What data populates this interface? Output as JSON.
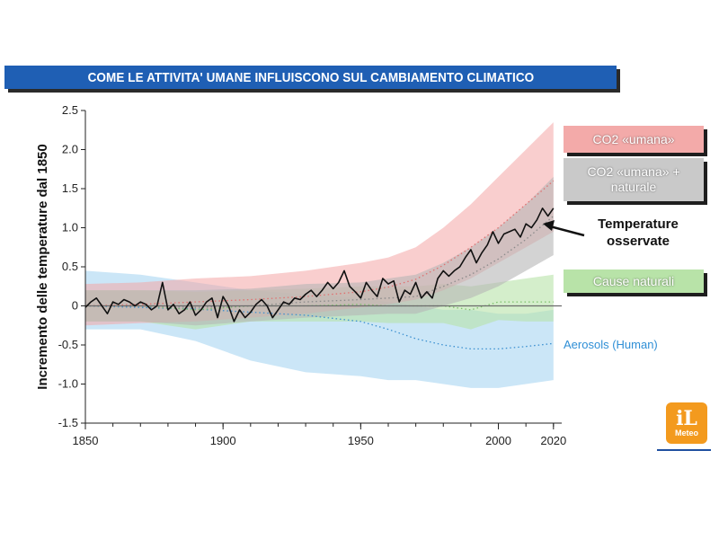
{
  "header": {
    "title": "COME LE ATTIVITA' UMANE INFLUISCONO SUL CAMBIAMENTO CLIMATICO"
  },
  "logo": {
    "main": "iL",
    "sub": "Meteo",
    "color": "#f39a1e"
  },
  "chart_data": {
    "type": "line",
    "title": "COME LE ATTIVITA' UMANE INFLUISCONO SUL CAMBIAMENTO CLIMATICO",
    "ylabel": "Incremento delle temperature dal 1850",
    "xlabel": "",
    "xlim": [
      1850,
      2023
    ],
    "ylim": [
      -1.5,
      2.5
    ],
    "x_ticks": [
      "1850",
      "1900",
      "1950",
      "2000",
      "2020"
    ],
    "x_tick_values": [
      1850,
      1900,
      1950,
      2000,
      2020
    ],
    "y_ticks": [
      "2.5",
      "2.0",
      "1.5",
      "1.0",
      "0.5",
      "0",
      "-0.5",
      "-1.0",
      "-1.5"
    ],
    "y_tick_values": [
      2.5,
      2.0,
      1.5,
      1.0,
      0.5,
      0,
      -0.5,
      -1.0,
      -1.5
    ],
    "grid": false,
    "zero_line": true,
    "legend_placement": "right",
    "series": [
      {
        "name": "CO2 «umana»",
        "color": "#f4a6a6",
        "style": "band-dotted",
        "x": [
          1850,
          1870,
          1890,
          1910,
          1930,
          1950,
          1960,
          1970,
          1980,
          1990,
          2000,
          2010,
          2020
        ],
        "values": [
          0.0,
          0.02,
          0.05,
          0.08,
          0.12,
          0.18,
          0.24,
          0.34,
          0.52,
          0.75,
          1.0,
          1.3,
          1.6
        ],
        "upper": [
          0.28,
          0.3,
          0.35,
          0.38,
          0.45,
          0.55,
          0.62,
          0.75,
          1.0,
          1.3,
          1.65,
          2.0,
          2.35
        ],
        "lower": [
          -0.25,
          -0.22,
          -0.2,
          -0.15,
          -0.1,
          -0.02,
          0.02,
          0.08,
          0.2,
          0.35,
          0.55,
          0.75,
          0.95
        ]
      },
      {
        "name": "CO2 «umana» + naturale",
        "color": "#b5b5b5",
        "style": "band-dotted",
        "x": [
          1850,
          1870,
          1890,
          1910,
          1930,
          1950,
          1960,
          1970,
          1980,
          1990,
          2000,
          2010,
          2020
        ],
        "values": [
          0.0,
          0.0,
          -0.02,
          0.0,
          0.05,
          0.08,
          0.1,
          0.12,
          0.25,
          0.4,
          0.6,
          0.85,
          1.15
        ],
        "upper": [
          0.2,
          0.2,
          0.2,
          0.22,
          0.28,
          0.3,
          0.35,
          0.4,
          0.55,
          0.75,
          1.0,
          1.3,
          1.65
        ],
        "lower": [
          -0.2,
          -0.2,
          -0.25,
          -0.2,
          -0.15,
          -0.12,
          -0.1,
          -0.1,
          0.0,
          0.1,
          0.25,
          0.45,
          0.65
        ]
      },
      {
        "name": "Cause naturali",
        "color": "#b8e3a8",
        "style": "band-dotted",
        "x": [
          1850,
          1870,
          1890,
          1910,
          1930,
          1950,
          1960,
          1970,
          1980,
          1990,
          2000,
          2010,
          2020
        ],
        "values": [
          0.0,
          0.0,
          -0.05,
          0.0,
          0.0,
          0.02,
          0.0,
          0.0,
          0.0,
          -0.05,
          0.05,
          0.05,
          0.05
        ],
        "upper": [
          0.2,
          0.2,
          0.18,
          0.2,
          0.22,
          0.25,
          0.25,
          0.25,
          0.28,
          0.25,
          0.3,
          0.35,
          0.4
        ],
        "lower": [
          -0.2,
          -0.2,
          -0.3,
          -0.2,
          -0.2,
          -0.2,
          -0.22,
          -0.22,
          -0.22,
          -0.3,
          -0.18,
          -0.2,
          -0.2
        ]
      },
      {
        "name": "Aerosols (Human)",
        "color": "#a9d6f2",
        "style": "band-dotted",
        "x": [
          1850,
          1870,
          1890,
          1910,
          1930,
          1950,
          1960,
          1970,
          1980,
          1990,
          2000,
          2010,
          2020
        ],
        "values": [
          0.0,
          -0.02,
          -0.04,
          -0.08,
          -0.12,
          -0.2,
          -0.3,
          -0.42,
          -0.5,
          -0.55,
          -0.55,
          -0.52,
          -0.48
        ],
        "upper": [
          0.45,
          0.4,
          0.3,
          0.2,
          0.15,
          0.1,
          0.05,
          0.0,
          -0.05,
          -0.05,
          -0.1,
          -0.1,
          -0.05
        ],
        "lower": [
          -0.3,
          -0.3,
          -0.45,
          -0.7,
          -0.85,
          -0.9,
          -0.95,
          -0.95,
          -1.0,
          -1.05,
          -1.05,
          -1.0,
          -0.95
        ]
      },
      {
        "name": "Temperature osservate",
        "color": "#111111",
        "style": "line",
        "x": [
          1850,
          1852,
          1854,
          1856,
          1858,
          1860,
          1862,
          1864,
          1866,
          1868,
          1870,
          1872,
          1874,
          1876,
          1878,
          1880,
          1882,
          1884,
          1886,
          1888,
          1890,
          1892,
          1894,
          1896,
          1898,
          1900,
          1902,
          1904,
          1906,
          1908,
          1910,
          1912,
          1914,
          1916,
          1918,
          1920,
          1922,
          1924,
          1926,
          1928,
          1930,
          1932,
          1934,
          1936,
          1938,
          1940,
          1942,
          1944,
          1946,
          1948,
          1950,
          1952,
          1954,
          1956,
          1958,
          1960,
          1962,
          1964,
          1966,
          1968,
          1970,
          1972,
          1974,
          1976,
          1978,
          1980,
          1982,
          1984,
          1986,
          1988,
          1990,
          1992,
          1994,
          1996,
          1998,
          2000,
          2002,
          2004,
          2006,
          2008,
          2010,
          2012,
          2014,
          2016,
          2018,
          2020
        ],
        "values": [
          -0.02,
          0.05,
          0.1,
          0.0,
          -0.1,
          0.05,
          0.02,
          0.08,
          0.05,
          0.0,
          0.05,
          0.02,
          -0.05,
          0.0,
          0.3,
          -0.05,
          0.02,
          -0.1,
          -0.05,
          0.05,
          -0.12,
          -0.05,
          0.05,
          0.1,
          -0.15,
          0.12,
          0.0,
          -0.2,
          -0.05,
          -0.15,
          -0.08,
          0.02,
          0.08,
          0.0,
          -0.15,
          -0.05,
          0.05,
          0.02,
          0.1,
          0.08,
          0.15,
          0.2,
          0.12,
          0.2,
          0.3,
          0.22,
          0.3,
          0.45,
          0.25,
          0.18,
          0.1,
          0.3,
          0.2,
          0.12,
          0.35,
          0.28,
          0.32,
          0.05,
          0.2,
          0.15,
          0.3,
          0.1,
          0.18,
          0.1,
          0.35,
          0.45,
          0.38,
          0.45,
          0.5,
          0.62,
          0.72,
          0.55,
          0.68,
          0.78,
          0.95,
          0.8,
          0.92,
          0.95,
          0.98,
          0.88,
          1.05,
          1.0,
          1.1,
          1.25,
          1.15,
          1.25
        ]
      }
    ],
    "legend": [
      {
        "label": "CO2 «umana»",
        "color": "#f3aaa9"
      },
      {
        "label": "CO2 «umana» + naturale",
        "color": "#c9c9c9"
      },
      {
        "label": "Temperature osservate",
        "color": "#111111"
      },
      {
        "label": "Cause naturali",
        "color": "#b8e3a8"
      },
      {
        "label": "Aerosols (Human)",
        "color": "#2f8fd6"
      }
    ]
  }
}
